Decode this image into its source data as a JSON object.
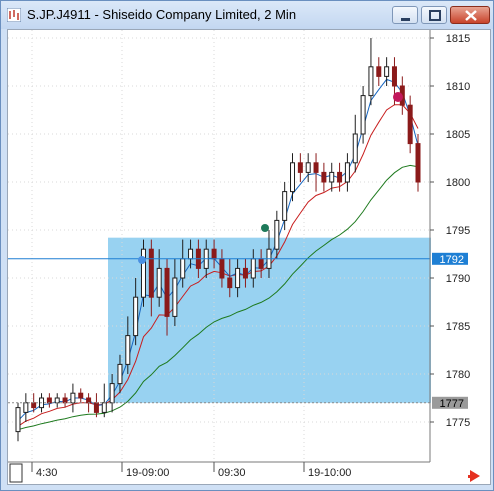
{
  "window": {
    "title": "S.JP.J4911 - Shiseido Company Limited, 2 Min"
  },
  "icons": {
    "app": "chart-app-icon",
    "minimize": "minimize-icon",
    "restore": "restore-icon",
    "close": "close-icon",
    "scroll_right": "red-arrow-right-icon"
  },
  "colors": {
    "highlight_zone": "#92d0f0",
    "candles": "#1f1f1f",
    "down_candle": "#8b1a1a",
    "ema_fast": "#1565c0",
    "ema_mid": "#c81e1e",
    "ema_slow": "#1e7a1e",
    "price_marker": "#1e7fd4",
    "level_marker": "#9a9a9a"
  },
  "price_axis": {
    "labels": [
      "1815",
      "1810",
      "1805",
      "1800",
      "1795",
      "1790",
      "1785",
      "1780",
      "1775"
    ],
    "current_price_label": "1792",
    "level_label": "1777"
  },
  "time_axis": {
    "labels": [
      "4:30",
      "19-09:00",
      "09:30",
      "19-10:00"
    ]
  },
  "chart_data": {
    "type": "candlestick",
    "title": "",
    "ylim": [
      1772,
      1817
    ],
    "horizontal_lines": [
      1792,
      1777
    ],
    "highlight_zone": {
      "y_top": 1794.2,
      "y_bottom": 1777
    },
    "x_labels": [
      "4:30",
      "19-09:00",
      "09:30",
      "19-10:00"
    ]
  }
}
